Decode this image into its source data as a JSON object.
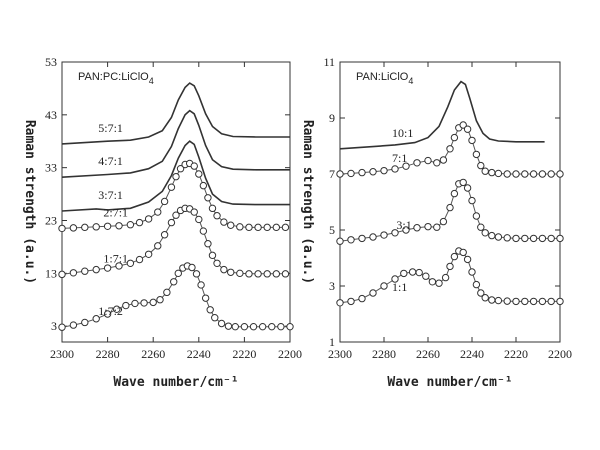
{
  "chart_data": [
    {
      "type": "line",
      "title": "PAN:PC:LiClO4",
      "xlabel": "Wave number/cm⁻¹",
      "ylabel": "Raman strength (a.u.)",
      "xlim": [
        2300,
        2200
      ],
      "ylim": [
        0,
        53
      ],
      "x_ticks": [
        2300,
        2280,
        2260,
        2240,
        2220,
        2200
      ],
      "y_ticks": [
        3,
        13,
        23,
        33,
        43,
        53
      ],
      "grid": false,
      "series": [
        {
          "name": "5:7:1",
          "style": "line",
          "x": [
            2300,
            2280,
            2270,
            2262,
            2256,
            2252,
            2249,
            2246,
            2244,
            2242,
            2240,
            2237,
            2234,
            2230,
            2225,
            2215,
            2200
          ],
          "y": [
            37.5,
            38.0,
            38.2,
            38.8,
            40.0,
            42.5,
            45.8,
            48.2,
            49.0,
            48.5,
            46.6,
            43.2,
            40.8,
            39.4,
            38.9,
            38.8,
            38.8
          ]
        },
        {
          "name": "4:7:1",
          "style": "line",
          "x": [
            2300,
            2280,
            2270,
            2262,
            2256,
            2252,
            2249,
            2246,
            2244,
            2242,
            2240,
            2237,
            2234,
            2230,
            2225,
            2215,
            2200
          ],
          "y": [
            31.2,
            31.7,
            32.0,
            32.8,
            34.2,
            37.0,
            40.4,
            43.0,
            43.8,
            43.2,
            41.0,
            37.2,
            34.5,
            33.2,
            32.7,
            32.6,
            32.6
          ]
        },
        {
          "name": "3:7:1",
          "style": "line",
          "x": [
            2300,
            2285,
            2280,
            2270,
            2262,
            2256,
            2252,
            2249,
            2246,
            2244,
            2242,
            2240,
            2237,
            2234,
            2230,
            2225,
            2215,
            2200
          ],
          "y": [
            24.8,
            25.2,
            25.0,
            25.3,
            26.5,
            28.5,
            31.5,
            34.8,
            37.2,
            38.0,
            37.4,
            35.0,
            31.0,
            28.0,
            26.6,
            26.1,
            26.0,
            26.0
          ]
        },
        {
          "name": "2:7:1",
          "style": "markers",
          "x": [
            2300,
            2295,
            2290,
            2285,
            2280,
            2275,
            2270,
            2266,
            2262,
            2258,
            2255,
            2252,
            2250,
            2248,
            2246,
            2244,
            2242,
            2240,
            2238,
            2236,
            2234,
            2232,
            2229,
            2226,
            2222,
            2218,
            2214,
            2210,
            2206,
            2202
          ],
          "y": [
            21.5,
            21.6,
            21.7,
            21.8,
            21.9,
            22.0,
            22.2,
            22.6,
            23.3,
            24.6,
            26.6,
            29.3,
            31.3,
            32.8,
            33.6,
            33.8,
            33.3,
            31.8,
            29.6,
            27.3,
            25.3,
            23.9,
            22.7,
            22.1,
            21.8,
            21.7,
            21.7,
            21.7,
            21.7,
            21.7
          ]
        },
        {
          "name": "1:7:1",
          "style": "markers",
          "x": [
            2300,
            2295,
            2290,
            2285,
            2280,
            2275,
            2270,
            2266,
            2262,
            2258,
            2255,
            2252,
            2250,
            2248,
            2246,
            2244,
            2242,
            2240,
            2238,
            2236,
            2234,
            2232,
            2229,
            2226,
            2222,
            2218,
            2214,
            2210,
            2206,
            2202
          ],
          "y": [
            12.8,
            13.1,
            13.4,
            13.7,
            14.0,
            14.4,
            14.9,
            15.6,
            16.6,
            18.2,
            20.3,
            22.6,
            24.0,
            24.9,
            25.3,
            25.2,
            24.6,
            23.2,
            21.0,
            18.6,
            16.4,
            14.9,
            13.7,
            13.2,
            13.0,
            12.9,
            12.9,
            12.9,
            12.9,
            12.9
          ]
        },
        {
          "name": "1:7:2",
          "style": "markers",
          "x": [
            2300,
            2295,
            2290,
            2285,
            2280,
            2276,
            2272,
            2268,
            2264,
            2260,
            2257,
            2254,
            2251,
            2249,
            2247,
            2245,
            2243,
            2241,
            2239,
            2237,
            2235,
            2233,
            2230,
            2227,
            2224,
            2220,
            2216,
            2212,
            2208,
            2204,
            2200
          ],
          "y": [
            2.8,
            3.2,
            3.7,
            4.4,
            5.3,
            6.2,
            6.9,
            7.3,
            7.4,
            7.5,
            8.0,
            9.4,
            11.4,
            13.0,
            14.0,
            14.4,
            14.1,
            12.9,
            10.8,
            8.3,
            6.1,
            4.6,
            3.5,
            3.0,
            2.9,
            2.9,
            2.9,
            2.9,
            2.9,
            2.9,
            2.9
          ]
        }
      ]
    },
    {
      "type": "line",
      "title": "PAN:LiClO4",
      "xlabel": "Wave number/cm⁻¹",
      "ylabel": "Raman strength (a.u.)",
      "xlim": [
        2300,
        2200
      ],
      "ylim": [
        1,
        11
      ],
      "x_ticks": [
        2300,
        2280,
        2260,
        2240,
        2220,
        2200
      ],
      "y_ticks": [
        1,
        3,
        5,
        7,
        9,
        11
      ],
      "grid": false,
      "series": [
        {
          "name": "10:1",
          "style": "line",
          "x": [
            2300,
            2285,
            2275,
            2266,
            2260,
            2255,
            2251,
            2248,
            2245,
            2243,
            2241,
            2238,
            2235,
            2232,
            2228,
            2220,
            2207
          ],
          "y": [
            7.9,
            7.98,
            8.04,
            8.12,
            8.3,
            8.7,
            9.4,
            10.0,
            10.3,
            10.2,
            9.7,
            8.9,
            8.45,
            8.25,
            8.18,
            8.15,
            8.15
          ]
        },
        {
          "name": "7:1",
          "style": "markers",
          "x": [
            2300,
            2295,
            2290,
            2285,
            2280,
            2275,
            2270,
            2265,
            2260,
            2256,
            2253,
            2250,
            2248,
            2246,
            2244,
            2242,
            2240,
            2238,
            2236,
            2234,
            2231,
            2228,
            2224,
            2220,
            2216,
            2212,
            2208,
            2204,
            2200
          ],
          "y": [
            7.0,
            7.02,
            7.05,
            7.08,
            7.12,
            7.18,
            7.28,
            7.4,
            7.48,
            7.4,
            7.5,
            7.9,
            8.3,
            8.65,
            8.75,
            8.6,
            8.2,
            7.7,
            7.3,
            7.1,
            7.05,
            7.02,
            7.0,
            7.0,
            7.0,
            7.0,
            7.0,
            7.0,
            7.0
          ]
        },
        {
          "name": "3:1",
          "style": "markers",
          "x": [
            2300,
            2295,
            2290,
            2285,
            2280,
            2275,
            2270,
            2265,
            2260,
            2256,
            2253,
            2250,
            2248,
            2246,
            2244,
            2242,
            2240,
            2238,
            2236,
            2234,
            2231,
            2228,
            2224,
            2220,
            2216,
            2212,
            2208,
            2204,
            2200
          ],
          "y": [
            4.6,
            4.65,
            4.7,
            4.75,
            4.82,
            4.9,
            5.0,
            5.08,
            5.12,
            5.1,
            5.3,
            5.8,
            6.3,
            6.65,
            6.7,
            6.5,
            6.05,
            5.5,
            5.1,
            4.9,
            4.8,
            4.75,
            4.72,
            4.7,
            4.7,
            4.7,
            4.7,
            4.7,
            4.7
          ]
        },
        {
          "name": "1:1",
          "style": "markers",
          "x": [
            2300,
            2295,
            2290,
            2285,
            2280,
            2275,
            2271,
            2267,
            2264,
            2261,
            2258,
            2255,
            2252,
            2250,
            2248,
            2246,
            2244,
            2242,
            2240,
            2238,
            2236,
            2234,
            2231,
            2228,
            2224,
            2220,
            2216,
            2212,
            2208,
            2204,
            2200
          ],
          "y": [
            2.4,
            2.45,
            2.55,
            2.75,
            3.0,
            3.25,
            3.45,
            3.5,
            3.48,
            3.35,
            3.15,
            3.1,
            3.3,
            3.7,
            4.05,
            4.25,
            4.2,
            3.95,
            3.5,
            3.05,
            2.75,
            2.58,
            2.5,
            2.48,
            2.46,
            2.45,
            2.45,
            2.45,
            2.45,
            2.45,
            2.45
          ]
        }
      ]
    }
  ]
}
